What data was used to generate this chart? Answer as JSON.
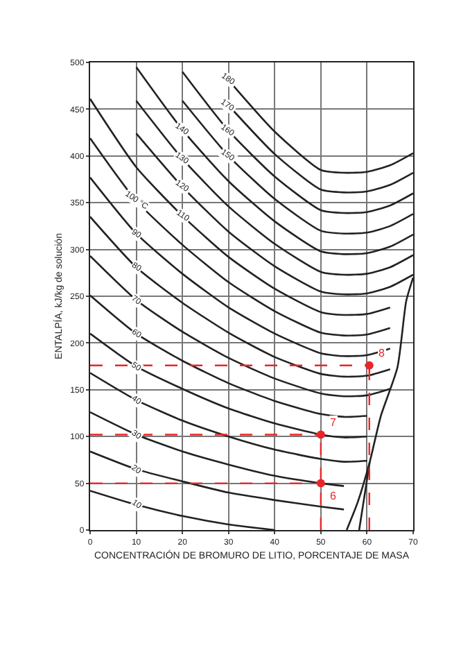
{
  "chart_data": {
    "type": "line",
    "xlabel": "CONCENTRACIÓN DE BROMURO DE LITIO, PORCENTAJE DE MASA",
    "ylabel": "ENTALPÍA, kJ/kg de solución",
    "x": [
      0,
      10,
      20,
      30,
      40,
      50,
      55,
      60,
      65,
      70
    ],
    "xlim": [
      0,
      70
    ],
    "xticks": [
      0,
      10,
      20,
      30,
      40,
      50,
      60,
      70
    ],
    "ylim": [
      0,
      500
    ],
    "yticks": [
      0,
      50,
      100,
      150,
      200,
      250,
      300,
      350,
      400,
      450,
      500
    ],
    "grid": true,
    "marker": "none",
    "line_style": "solid",
    "series": [
      {
        "color": "#222222",
        "values": [
          42,
          27,
          15,
          6,
          0,
          null,
          null,
          null,
          null,
          null
        ]
      },
      {
        "color": "#222222",
        "values": [
          84,
          65,
          52,
          40,
          32,
          25,
          22,
          null,
          null,
          null
        ]
      },
      {
        "color": "#222222",
        "values": [
          126,
          102,
          84,
          70,
          58,
          50,
          47,
          null,
          null,
          null
        ]
      },
      {
        "color": "#222222",
        "values": [
          168,
          139,
          117,
          100,
          86,
          76,
          73,
          74,
          null,
          null
        ]
      },
      {
        "color": "#222222",
        "values": [
          210,
          175,
          151,
          130,
          114,
          102,
          99,
          100,
          null,
          null
        ]
      },
      {
        "color": "#222222",
        "values": [
          251,
          210,
          181,
          157,
          138,
          124,
          121,
          122,
          null,
          null
        ]
      },
      {
        "color": "#222222",
        "values": [
          293,
          246,
          212,
          184,
          162,
          146,
          143,
          144,
          151,
          null
        ]
      },
      {
        "color": "#222222",
        "values": [
          335,
          281,
          243,
          211,
          185,
          167,
          164,
          165,
          172,
          null
        ]
      },
      {
        "color": "#222222",
        "values": [
          377,
          317,
          274,
          238,
          210,
          189,
          186,
          187,
          194,
          null
        ]
      },
      {
        "color": "#222222",
        "values": [
          419,
          352,
          305,
          265,
          234,
          211,
          208,
          209,
          216,
          null
        ]
      },
      {
        "color": "#222222",
        "values": [
          461,
          388,
          336,
          292,
          258,
          233,
          230,
          231,
          238,
          null
        ]
      },
      {
        "color": "#222222",
        "values": [
          null,
          424,
          367,
          319,
          282,
          255,
          252,
          253,
          260,
          273
        ]
      },
      {
        "color": "#222222",
        "values": [
          null,
          459,
          397,
          346,
          306,
          276,
          273,
          274,
          281,
          294
        ]
      },
      {
        "color": "#222222",
        "values": [
          null,
          495,
          428,
          373,
          330,
          298,
          295,
          296,
          303,
          316
        ]
      },
      {
        "color": "#222222",
        "values": [
          null,
          null,
          459,
          400,
          354,
          320,
          317,
          318,
          325,
          338
        ]
      },
      {
        "color": "#222222",
        "values": [
          null,
          null,
          490,
          427,
          378,
          342,
          339,
          340,
          347,
          360
        ]
      },
      {
        "color": "#222222",
        "values": [
          null,
          null,
          null,
          454,
          402,
          364,
          361,
          362,
          369,
          382
        ]
      },
      {
        "color": "#222222",
        "values": [
          null,
          null,
          null,
          481,
          426,
          385,
          382,
          383,
          390,
          403
        ]
      },
      {
        "color": "#222222",
        "x": [
          55.6,
          58,
          60.6,
          63,
          66.6,
          68.5,
          70
        ],
        "values": [
          0,
          30,
          73,
          122,
          174,
          245,
          270
        ]
      },
      {
        "color": "#222222",
        "x": [
          58.3,
          60.6
        ],
        "values": [
          0,
          73
        ]
      },
      {
        "color": "#e8262a",
        "line_style": "dashed",
        "x": [
          0,
          50
        ],
        "values": [
          50,
          50
        ]
      },
      {
        "color": "#e8262a",
        "line_style": "dashed",
        "x": [
          0,
          50
        ],
        "values": [
          102,
          102
        ]
      },
      {
        "color": "#e8262a",
        "line_style": "dashed",
        "x": [
          0,
          60.5
        ],
        "values": [
          176,
          176
        ]
      },
      {
        "color": "#e8262a",
        "line_style": "dashed",
        "x": [
          50,
          50
        ],
        "values": [
          0,
          102
        ]
      },
      {
        "color": "#e8262a",
        "line_style": "dashed",
        "x": [
          60.5,
          60.5
        ],
        "values": [
          0,
          176
        ]
      },
      {
        "type": "scatter",
        "marker": "circle",
        "color": "#e8262a",
        "x": [
          50,
          50,
          60.5
        ],
        "values": [
          50,
          102,
          176
        ]
      }
    ],
    "annotations": [
      {
        "text": "10",
        "x": 10,
        "y": 27
      },
      {
        "text": "20",
        "x": 10,
        "y": 65
      },
      {
        "text": "30",
        "x": 10,
        "y": 102
      },
      {
        "text": "40",
        "x": 10,
        "y": 139
      },
      {
        "text": "50",
        "x": 10,
        "y": 175
      },
      {
        "text": "60",
        "x": 10,
        "y": 210
      },
      {
        "text": "70",
        "x": 10,
        "y": 246
      },
      {
        "text": "80",
        "x": 10,
        "y": 281
      },
      {
        "text": "90",
        "x": 10,
        "y": 317
      },
      {
        "text": "100 °C",
        "x": 10,
        "y": 352
      },
      {
        "text": "110",
        "x": 20,
        "y": 336
      },
      {
        "text": "120",
        "x": 20,
        "y": 367
      },
      {
        "text": "130",
        "x": 20,
        "y": 397
      },
      {
        "text": "140",
        "x": 20,
        "y": 428
      },
      {
        "text": "150",
        "x": 30,
        "y": 400
      },
      {
        "text": "160",
        "x": 30,
        "y": 427
      },
      {
        "text": "170",
        "x": 30,
        "y": 454
      },
      {
        "text": "180",
        "x": 30,
        "y": 481
      },
      {
        "text": "6",
        "x": 50,
        "y": 50
      },
      {
        "text": "7",
        "x": 50,
        "y": 102
      },
      {
        "text": "8",
        "x": 60.5,
        "y": 176
      }
    ]
  }
}
